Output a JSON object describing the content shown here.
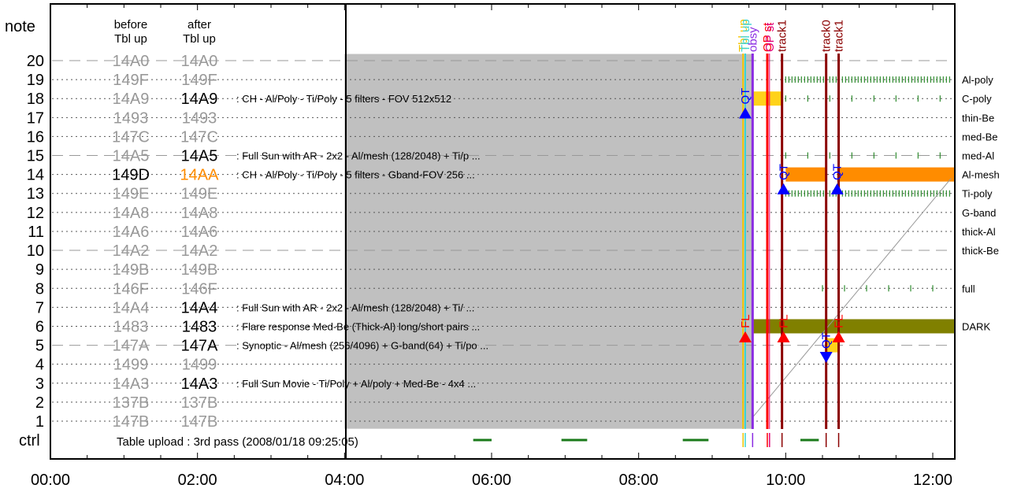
{
  "chart_data": {
    "type": "timeline",
    "y_axis_label": "note",
    "ctrl_row_label": "ctrl",
    "column_headers": {
      "before": [
        "before",
        "Tbl up"
      ],
      "after": [
        "after",
        "Tbl up"
      ]
    },
    "x_ticks": [
      "00:00",
      "02:00",
      "04:00",
      "06:00",
      "08:00",
      "10:00",
      "12:00"
    ],
    "x_range_hours": [
      0,
      12.3
    ],
    "rows": [
      {
        "note": "20",
        "before": "14A0",
        "after": "14A0",
        "active": false,
        "desc": ""
      },
      {
        "note": "19",
        "before": "149F",
        "after": "149F",
        "active": false,
        "desc": ""
      },
      {
        "note": "18",
        "before": "14A9",
        "after": "14A9",
        "active": true,
        "desc": ": CH - Al/Poly - Ti/Poly - 5 filters - FOV 512x512"
      },
      {
        "note": "17",
        "before": "1493",
        "after": "1493",
        "active": false,
        "desc": ""
      },
      {
        "note": "16",
        "before": "147C",
        "after": "147C",
        "active": false,
        "desc": ""
      },
      {
        "note": "15",
        "before": "14A5",
        "after": "14A5",
        "active": true,
        "desc": ": Full Sun with AR - 2x2 - Al/mesh (128/2048) + Ti/p ..."
      },
      {
        "note": "14",
        "before": "149D",
        "after": "14AA",
        "active": true,
        "changed": true,
        "desc": ": CH - Al/Poly - Ti/Poly - 5 filters - Gband-FOV 256 ..."
      },
      {
        "note": "13",
        "before": "149E",
        "after": "149E",
        "active": false,
        "desc": ""
      },
      {
        "note": "12",
        "before": "14A8",
        "after": "14A8",
        "active": false,
        "desc": ""
      },
      {
        "note": "11",
        "before": "14A6",
        "after": "14A6",
        "active": false,
        "desc": ""
      },
      {
        "note": "10",
        "before": "14A2",
        "after": "14A2",
        "active": false,
        "desc": ""
      },
      {
        "note": "9",
        "before": "149B",
        "after": "149B",
        "active": false,
        "desc": ""
      },
      {
        "note": "8",
        "before": "146F",
        "after": "146F",
        "active": false,
        "desc": ""
      },
      {
        "note": "7",
        "before": "14A4",
        "after": "14A4",
        "active": true,
        "desc": ": Full Sun with AR - 2x2 - Al/mesh (128/2048)  + Ti/ ..."
      },
      {
        "note": "6",
        "before": "1483",
        "after": "1483",
        "active": true,
        "desc": ": Flare response Med-Be (Thick-Al) long/short pairs  ..."
      },
      {
        "note": "5",
        "before": "147A",
        "after": "147A",
        "active": true,
        "desc": ": Synoptic - Al/mesh (256/4096) + G-band(64) + Ti/po ..."
      },
      {
        "note": "4",
        "before": "1499",
        "after": "1499",
        "active": false,
        "desc": ""
      },
      {
        "note": "3",
        "before": "14A3",
        "after": "14A3",
        "active": true,
        "desc": ": Full Sun Movie - Ti/Poly + Al/poly + Med-Be - 4x4  ..."
      },
      {
        "note": "2",
        "before": "137B",
        "after": "137B",
        "active": false,
        "desc": ""
      },
      {
        "note": "1",
        "before": "147B",
        "after": "147B",
        "active": false,
        "desc": ""
      }
    ],
    "filter_labels": [
      {
        "row": 19,
        "label": "Al-poly"
      },
      {
        "row": 18,
        "label": "C-poly"
      },
      {
        "row": 17,
        "label": "thin-Be"
      },
      {
        "row": 16,
        "label": "med-Be"
      },
      {
        "row": 15,
        "label": "med-Al"
      },
      {
        "row": 14,
        "label": "Al-mesh"
      },
      {
        "row": 13,
        "label": "Ti-poly"
      },
      {
        "row": 12,
        "label": "G-band"
      },
      {
        "row": 11,
        "label": "thick-Al"
      },
      {
        "row": 10,
        "label": "thick-Be"
      },
      {
        "row": 8,
        "label": "full"
      },
      {
        "row": 6,
        "label": "DARK"
      }
    ],
    "ctrl_text": "Table upload : 3rd pass (2008/01/18 09:25:05)",
    "shaded_region": {
      "start_h": 4.0,
      "end_h": 9.55,
      "top_row": 20.35,
      "bottom_row": 0.6,
      "color": "#c0c0c0"
    },
    "event_lines": [
      {
        "label": "Tbl up",
        "t_h": 9.42,
        "color": "#f5c400",
        "width": 2
      },
      {
        "label": "Tbl up",
        "t_h": 9.45,
        "color": "#3ad3d3",
        "width": 2
      },
      {
        "label": "obsy",
        "t_h": 9.55,
        "color": "#8a2be2",
        "width": 3
      },
      {
        "label": "OP st",
        "t_h": 9.75,
        "color": "#ff0000",
        "width": 3
      },
      {
        "label": "OP st",
        "t_h": 9.78,
        "color": "#e0007a",
        "width": 1
      },
      {
        "label": "track1",
        "t_h": 9.95,
        "color": "#8b0000",
        "width": 3
      },
      {
        "label": "track0",
        "t_h": 10.55,
        "color": "#8b0000",
        "width": 3
      },
      {
        "label": "track1",
        "t_h": 10.72,
        "color": "#8b0000",
        "width": 3
      }
    ],
    "bars": [
      {
        "row": 18,
        "start_h": 9.55,
        "end_h": 9.95,
        "color": "#ffd21a"
      },
      {
        "row": 14,
        "start_h": 10.0,
        "end_h": 10.55,
        "color": "#ff8c00"
      },
      {
        "row": 14,
        "start_h": 10.7,
        "end_h": 12.3,
        "color": "#ff8c00"
      },
      {
        "row": 6,
        "start_h": 9.55,
        "end_h": 12.3,
        "color": "#808000"
      },
      {
        "row": 5,
        "start_h": 10.55,
        "end_h": 10.72,
        "color": "#ffd21a"
      }
    ],
    "markers": [
      {
        "label": "QT",
        "t_h": 9.45,
        "row": 17.2,
        "kind": "up",
        "color": "#0000ff"
      },
      {
        "label": "QT",
        "t_h": 9.97,
        "row": 13.2,
        "kind": "up",
        "color": "#0000ff"
      },
      {
        "label": "QT",
        "t_h": 10.7,
        "row": 13.2,
        "kind": "up",
        "color": "#0000ff"
      },
      {
        "label": "QT",
        "t_h": 10.55,
        "row": 4.4,
        "kind": "down",
        "color": "#0000ff"
      },
      {
        "label": "FL",
        "t_h": 9.45,
        "row": 5.4,
        "kind": "up",
        "color": "#ff0000"
      },
      {
        "label": "FL",
        "t_h": 9.97,
        "row": 5.4,
        "kind": "up",
        "color": "#ff0000"
      },
      {
        "label": "FL",
        "t_h": 10.72,
        "row": 5.4,
        "kind": "up",
        "color": "#ff0000"
      }
    ],
    "ctrl_segments": [
      {
        "start_h": 5.75,
        "end_h": 6.0
      },
      {
        "start_h": 6.95,
        "end_h": 7.3
      },
      {
        "start_h": 8.6,
        "end_h": 8.95
      },
      {
        "start_h": 10.2,
        "end_h": 10.45
      }
    ],
    "tick_streams": [
      {
        "row": 19,
        "start_h": 10.0,
        "end_h": 12.25,
        "color": "#2e8b2e"
      },
      {
        "row": 13,
        "start_h": 10.0,
        "end_h": 12.25,
        "color": "#2e8b2e"
      },
      {
        "row": 15,
        "start_h": 10.0,
        "end_h": 12.25,
        "color": "#2e8b2e",
        "sparse": true
      },
      {
        "row": 18,
        "start_h": 10.0,
        "end_h": 12.25,
        "color": "#2e8b2e",
        "sparse": true
      },
      {
        "row": 8,
        "start_h": 10.5,
        "end_h": 12.25,
        "color": "#2e8b2e",
        "sparse": true
      }
    ]
  }
}
